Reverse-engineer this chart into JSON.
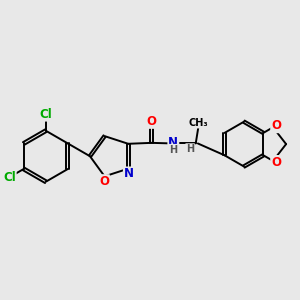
{
  "background_color": "#e8e8e8",
  "bond_color": "#000000",
  "bond_width": 1.4,
  "atom_colors": {
    "O": "#ff0000",
    "N": "#0000cc",
    "Cl": "#00aa00",
    "C": "#000000",
    "H": "#555555"
  },
  "font_size": 8.5,
  "fig_width": 3.0,
  "fig_height": 3.0,
  "dpi": 100
}
